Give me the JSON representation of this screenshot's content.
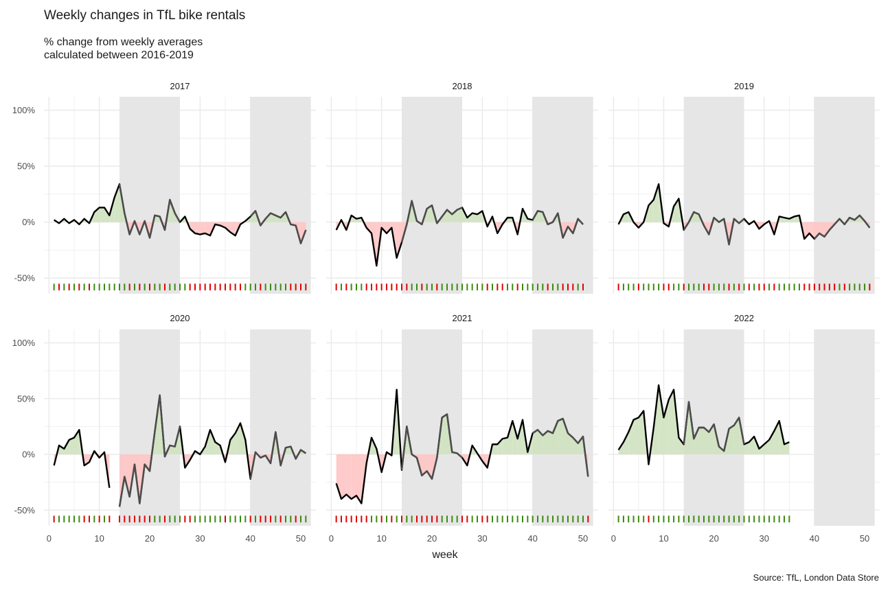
{
  "chart_data": {
    "type": "line",
    "title": "Weekly changes in TfL bike rentals",
    "subtitle": "% change from weekly averages\ncalculated between 2016-2019",
    "xlabel": "week",
    "ylabel": "",
    "caption": "Source: TfL, London Data Store",
    "x_ticks": [
      0,
      10,
      20,
      30,
      40,
      50
    ],
    "y_ticks": [
      100,
      50,
      0,
      -50
    ],
    "y_tick_labels": [
      "100%",
      "50%",
      "0%",
      "-50%"
    ],
    "xlim": [
      -1,
      53
    ],
    "ylim": [
      -64,
      112
    ],
    "shaded_week_ranges": [
      [
        14,
        26
      ],
      [
        40,
        52
      ]
    ],
    "colors": {
      "positive_fill": "#cfe2c0",
      "negative_fill": "#ffc4c4",
      "positive_tick": "#3a8a0e",
      "negative_tick": "#e00000",
      "shade": "#e6e6e6",
      "grid": "#ebebeb",
      "line": "#000000"
    },
    "panels": [
      {
        "label": "2017",
        "start_week": 1,
        "values": [
          2,
          -1,
          3,
          -1,
          2,
          -2,
          3,
          -1,
          9,
          13,
          13,
          6,
          22,
          34,
          8,
          -11,
          1,
          -11,
          1,
          -14,
          6,
          5,
          -7,
          20,
          8,
          0,
          5,
          -6,
          -10,
          -11,
          -10,
          -12,
          -2,
          -3,
          -5,
          -9,
          -12,
          -2,
          1,
          5,
          10,
          -3,
          3,
          8,
          6,
          4,
          9,
          -2,
          -3,
          -19,
          -7
        ]
      },
      {
        "label": "2018",
        "start_week": 1,
        "values": [
          -7,
          2,
          -7,
          6,
          3,
          4,
          -5,
          -10,
          -39,
          -5,
          -10,
          -5,
          -32,
          -18,
          -2,
          19,
          1,
          -2,
          12,
          15,
          -1,
          5,
          11,
          7,
          11,
          13,
          4,
          8,
          7,
          10,
          -4,
          5,
          -10,
          -2,
          4,
          4,
          -11,
          12,
          3,
          2,
          10,
          9,
          -2,
          0,
          8,
          -14,
          -4,
          -10,
          3,
          -2
        ]
      },
      {
        "label": "2019",
        "start_week": 1,
        "values": [
          -2,
          7,
          9,
          0,
          -5,
          0,
          15,
          20,
          34,
          -1,
          -4,
          14,
          21,
          -7,
          0,
          9,
          7,
          -3,
          -11,
          4,
          0,
          3,
          -20,
          3,
          -1,
          3,
          -2,
          1,
          -6,
          -2,
          1,
          -11,
          5,
          4,
          3,
          5,
          6,
          -15,
          -10,
          -15,
          -10,
          -13,
          -7,
          -2,
          3,
          -2,
          4,
          2,
          6,
          1,
          -5
        ]
      },
      {
        "label": "2020",
        "start_week": 1,
        "values": [
          -10,
          8,
          5,
          13,
          15,
          22,
          -10,
          -7,
          3,
          -3,
          2,
          -30,
          null,
          -47,
          -20,
          -38,
          -9,
          -44,
          -9,
          -15,
          20,
          53,
          -2,
          8,
          7,
          25,
          -12,
          -5,
          3,
          0,
          7,
          22,
          11,
          8,
          -7,
          13,
          19,
          28,
          13,
          -22,
          2,
          -3,
          -1,
          -8,
          20,
          -10,
          6,
          7,
          -4,
          4,
          1
        ]
      },
      {
        "label": "2021",
        "start_week": 1,
        "values": [
          -26,
          -40,
          -36,
          -40,
          -37,
          -44,
          -8,
          15,
          5,
          -16,
          2,
          -1,
          58,
          -14,
          25,
          0,
          -3,
          -19,
          -15,
          -22,
          -3,
          33,
          36,
          2,
          1,
          -3,
          -10,
          8,
          1,
          -6,
          -12,
          9,
          9,
          14,
          15,
          30,
          14,
          31,
          2,
          19,
          22,
          17,
          21,
          19,
          30,
          32,
          19,
          15,
          10,
          16,
          -20
        ]
      },
      {
        "label": "2022",
        "start_week": 1,
        "values": [
          4,
          11,
          20,
          31,
          33,
          39,
          -9,
          24,
          62,
          33,
          49,
          58,
          15,
          9,
          47,
          14,
          24,
          24,
          20,
          27,
          7,
          3,
          23,
          26,
          33,
          9,
          11,
          16,
          5,
          9,
          13,
          21,
          30,
          9,
          11
        ]
      }
    ]
  }
}
